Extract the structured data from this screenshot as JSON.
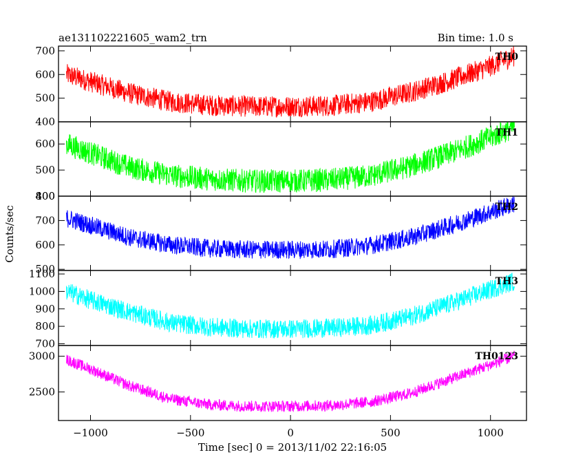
{
  "header": {
    "obs_id": "ae131102221605_wam2_trn",
    "bin_time": "Bin time: 1.0 s"
  },
  "chart_data": {
    "type": "line",
    "title": "ae131102221605_wam2_trn",
    "subtitle": "Bin time: 1.0 s",
    "xlabel": "Time [sec] 0 = 2013/11/02 22:16:05",
    "ylabel": "Counts/sec",
    "xlim": [
      -1160,
      1180
    ],
    "x_ticks": [
      -1000,
      -500,
      0,
      500,
      1000
    ],
    "x_tick_labels": [
      "−1000",
      "−500",
      "0",
      "500",
      "1000"
    ],
    "x": [
      -1120,
      -1000,
      -800,
      -600,
      -400,
      -200,
      0,
      200,
      400,
      600,
      800,
      1000,
      1120
    ],
    "panels": [
      {
        "name": "TH0",
        "color": "#ff0000",
        "ylim": [
          400,
          720
        ],
        "yticks": [
          400,
          500,
          600,
          700
        ],
        "values": [
          600,
          570,
          520,
          485,
          470,
          465,
          465,
          468,
          485,
          525,
          575,
          635,
          680
        ],
        "noise": 45
      },
      {
        "name": "TH1",
        "color": "#00ff00",
        "ylim": [
          400,
          685
        ],
        "yticks": [
          400,
          500,
          600
        ],
        "values": [
          600,
          565,
          510,
          480,
          465,
          458,
          458,
          462,
          478,
          515,
          565,
          625,
          665
        ],
        "noise": 45
      },
      {
        "name": "TH2",
        "color": "#0000ff",
        "ylim": [
          495,
          800
        ],
        "yticks": [
          500,
          600,
          700,
          800
        ],
        "values": [
          710,
          680,
          630,
          600,
          585,
          580,
          580,
          582,
          598,
          630,
          680,
          735,
          770
        ],
        "noise": 38
      },
      {
        "name": "TH3",
        "color": "#00ffff",
        "ylim": [
          690,
          1120
        ],
        "yticks": [
          700,
          800,
          900,
          1000,
          1100
        ],
        "values": [
          1000,
          950,
          880,
          820,
          795,
          785,
          785,
          790,
          805,
          855,
          930,
          1010,
          1060
        ],
        "noise": 55
      },
      {
        "name": "TH0123",
        "color": "#ff00ff",
        "ylim": [
          2100,
          3150
        ],
        "yticks": [
          2500,
          3000
        ],
        "values": [
          2950,
          2820,
          2580,
          2400,
          2320,
          2300,
          2300,
          2310,
          2360,
          2480,
          2680,
          2880,
          3000
        ],
        "noise": 80
      }
    ],
    "grid": false,
    "legend": "none"
  }
}
